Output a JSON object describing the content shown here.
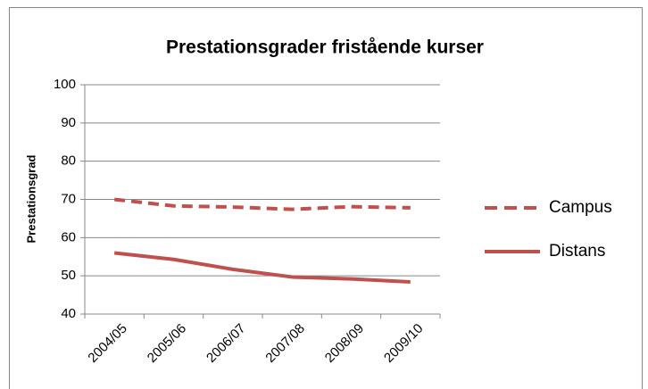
{
  "chart_data": {
    "type": "line",
    "title": "Prestationsgrader fristående kurser",
    "y_label": "Prestationsgrad",
    "categories": [
      "2004/05",
      "2005/06",
      "2006/07",
      "2007/08",
      "2008/09",
      "2009/10"
    ],
    "series": [
      {
        "name": "Campus",
        "color": "#c0504d",
        "dashed": true,
        "values": [
          70,
          68.3,
          68,
          67.4,
          68.1,
          67.8
        ]
      },
      {
        "name": "Distans",
        "color": "#c0504d",
        "dashed": false,
        "values": [
          56,
          54.3,
          51.7,
          49.7,
          49.2,
          48.4
        ]
      }
    ],
    "ylim": [
      40,
      100
    ],
    "yticks": [
      40,
      50,
      60,
      70,
      80,
      90,
      100
    ],
    "grid": true,
    "legend": "right"
  }
}
